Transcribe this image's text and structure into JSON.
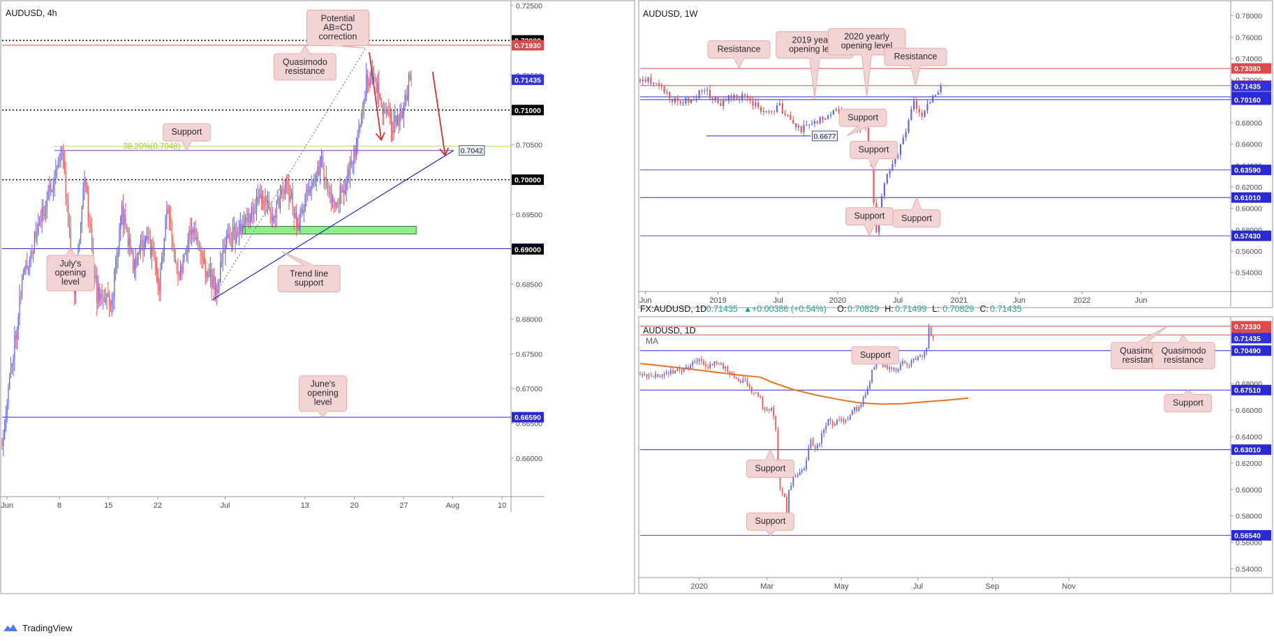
{
  "footer": {
    "brand": "TradingView",
    "logo_icon": "tradingview-logo-icon"
  },
  "colors": {
    "up": "#5b5ef0",
    "down": "#ef5350",
    "red_level": "#e04a4a",
    "blue_level": "#2929d6",
    "purple_level": "#7b3fb5",
    "callout_bg": "#f3d4d4",
    "callout_border": "#e9aaaa",
    "ma": "#e8741e",
    "zone": "#8ef08a",
    "fib": "#b7dc55"
  },
  "chart_data": [
    {
      "id": "h4",
      "type": "candlestick",
      "title": "AUDUSD, 4h",
      "ylim": [
        0.6545,
        0.7255
      ],
      "xlim": [
        0,
        102
      ],
      "ticks": [
        0.725,
        0.715,
        0.705,
        0.695,
        0.69,
        0.685,
        0.68,
        0.675,
        0.67,
        0.665,
        0.66
      ],
      "xticks": [
        {
          "x": 1,
          "label": "Jun"
        },
        {
          "x": 11.5,
          "label": "8"
        },
        {
          "x": 21.3,
          "label": "15"
        },
        {
          "x": 31.2,
          "label": "22"
        },
        {
          "x": 44.7,
          "label": "Jul"
        },
        {
          "x": 60.7,
          "label": "13"
        },
        {
          "x": 70.6,
          "label": "20"
        },
        {
          "x": 80.5,
          "label": "27"
        },
        {
          "x": 90.3,
          "label": "Aug"
        },
        {
          "x": 100.2,
          "label": "10"
        }
      ],
      "levels": [
        {
          "price": 0.72,
          "label": "0.72000",
          "style": "dotted",
          "color": "#000000",
          "badge": "#000000"
        },
        {
          "price": 0.7193,
          "label": "0.71930",
          "style": "solid",
          "color": "#e04a4a",
          "badge": "#e04a4a"
        },
        {
          "price": 0.71435,
          "label": "0.71435",
          "style": "none",
          "color": "#3030e0",
          "badge": "#3030e0"
        },
        {
          "price": 0.71,
          "label": "0.71000",
          "style": "dotted",
          "color": "#000000",
          "badge": "#000000"
        },
        {
          "price": 0.7,
          "label": "0.70000",
          "style": "dotted",
          "color": "#000000",
          "badge": "#000000"
        },
        {
          "price": 0.6901,
          "label": "0.69010",
          "style": "solid",
          "color": "#2929d6",
          "badge": "#2929d6"
        },
        {
          "price": 0.69,
          "label": "0.69000",
          "style": "none",
          "color": "#000000",
          "badge": "#000000"
        },
        {
          "price": 0.6659,
          "label": "0.66590",
          "style": "solid",
          "color": "#2929d6",
          "badge": "#2929d6"
        }
      ],
      "fib": {
        "price": 0.7048,
        "label": "38.20%(0.7048)"
      },
      "support_line": {
        "price": 0.7042,
        "x0": 10.5,
        "x1": 90.5,
        "tag": "0.7042"
      },
      "zone": {
        "x0": 48,
        "x1": 83,
        "y0": 0.6933,
        "y1": 0.6922
      },
      "trendline": {
        "x0": 42,
        "y0": 0.6827,
        "x1": 90.5,
        "y1": 0.7042
      },
      "ab_line": {
        "x0": 42,
        "y0": 0.6827,
        "x1": 72.8,
        "y1": 0.7188
      },
      "arrows": [
        {
          "x0": 73.6,
          "y0": 0.7183,
          "x1": 76,
          "y1": 0.7057
        },
        {
          "x0": 86.3,
          "y0": 0.7155,
          "x1": 88.8,
          "y1": 0.7035
        }
      ],
      "callouts": [
        {
          "text": "Potential\nAB=CD\ncorrection",
          "x": 67.3,
          "y": 0.7218,
          "tx": 72.8,
          "ty": 0.7189,
          "dir": "down"
        },
        {
          "text": "Quasimodo\nresistance",
          "x": 60.7,
          "y": 0.7162,
          "tx": 60.7,
          "ty": 0.7193,
          "dir": "up"
        },
        {
          "text": "Support",
          "x": 37,
          "y": 0.7068,
          "tx": 37,
          "ty": 0.7042,
          "dir": "down"
        },
        {
          "text": "July's\nopening\nlevel",
          "x": 13.7,
          "y": 0.6866,
          "tx": 13.7,
          "ty": 0.6901,
          "dir": "up"
        },
        {
          "text": "Trend line\nsupport",
          "x": 61.5,
          "y": 0.6858,
          "tx": 56,
          "ty": 0.6897,
          "dir": "up"
        },
        {
          "text": "June's\nopening\nlevel",
          "x": 64.3,
          "y": 0.6693,
          "tx": 64.3,
          "ty": 0.6659,
          "dir": "down"
        }
      ],
      "path": [
        [
          0,
          0.6625
        ],
        [
          4,
          0.6855
        ],
        [
          7,
          0.6925
        ],
        [
          12,
          0.7045
        ],
        [
          14.5,
          0.6845
        ],
        [
          16.5,
          0.7005
        ],
        [
          19,
          0.6835
        ],
        [
          22,
          0.6825
        ],
        [
          24,
          0.6955
        ],
        [
          26.5,
          0.6875
        ],
        [
          29,
          0.6925
        ],
        [
          31.5,
          0.6845
        ],
        [
          33,
          0.6955
        ],
        [
          35.5,
          0.6865
        ],
        [
          38,
          0.6935
        ],
        [
          40.5,
          0.6875
        ],
        [
          43,
          0.6843
        ],
        [
          45,
          0.6915
        ],
        [
          48,
          0.6925
        ],
        [
          52,
          0.6982
        ],
        [
          54,
          0.6945
        ],
        [
          57,
          0.6992
        ],
        [
          59.5,
          0.6935
        ],
        [
          61,
          0.6975
        ],
        [
          64,
          0.7025
        ],
        [
          66,
          0.6965
        ],
        [
          68.5,
          0.6985
        ],
        [
          71.5,
          0.7065
        ],
        [
          73,
          0.7145
        ],
        [
          74.5,
          0.7152
        ],
        [
          75.8,
          0.7112
        ],
        [
          78,
          0.7078
        ],
        [
          79.5,
          0.7082
        ],
        [
          80.8,
          0.7118
        ],
        [
          82,
          0.7143
        ]
      ],
      "vol": 0.0026,
      "seed": 11
    },
    {
      "id": "w1",
      "type": "candlestick",
      "title": "AUDUSD, 1W",
      "ylim": [
        0.5222,
        0.7928
      ],
      "xlim": [
        0,
        110
      ],
      "ticks": [
        0.78,
        0.76,
        0.74,
        0.72,
        0.68,
        0.66,
        0.64,
        0.62,
        0.6,
        0.58,
        0.56,
        0.54
      ],
      "xticks": [
        {
          "x": 1,
          "label": "Jun"
        },
        {
          "x": 14.5,
          "label": "2019"
        },
        {
          "x": 25.7,
          "label": "Jul"
        },
        {
          "x": 36.8,
          "label": "2020"
        },
        {
          "x": 48,
          "label": "Jul"
        },
        {
          "x": 59.4,
          "label": "2021"
        },
        {
          "x": 70.6,
          "label": "Jun"
        },
        {
          "x": 82.3,
          "label": "2022"
        },
        {
          "x": 93.3,
          "label": "Jun"
        }
      ],
      "levels": [
        {
          "price": 0.7308,
          "label": "0.73080",
          "style": "solid",
          "color": "#e04a4a",
          "badge": "#e04a4a"
        },
        {
          "price": 0.7147,
          "label": "0.71470",
          "style": "solid",
          "color": "#e04a4a",
          "badge": "#e04a4a"
        },
        {
          "price": 0.71435,
          "label": "0.71435",
          "style": "none",
          "color": "#3030e0",
          "badge": "#3030e0"
        },
        {
          "price": 0.7042,
          "label": "0.70420",
          "style": "solid",
          "color": "#2929d6",
          "badge": "#2929d6"
        },
        {
          "price": 0.7016,
          "label": "0.70160",
          "style": "solid",
          "color": "#2929d6",
          "badge": "#2929d6"
        },
        {
          "price": 0.6359,
          "label": "0.63590",
          "style": "solid",
          "color": "#7b3fb5",
          "badge": "#2929d6"
        },
        {
          "price": 0.6101,
          "label": "0.61010",
          "style": "solid",
          "color": "#2929d6",
          "badge": "#2929d6"
        },
        {
          "price": 0.5743,
          "label": "0.57430",
          "style": "solid",
          "color": "#7b3fb5",
          "badge": "#2929d6"
        }
      ],
      "short_line": {
        "price": 0.6677,
        "x0": 12.3,
        "x1": 31.8,
        "tag": "0.6677"
      },
      "callouts": [
        {
          "text": "Resistance",
          "x": 18.4,
          "y": 0.7485,
          "tx": 18.4,
          "ty": 0.731,
          "dir": "down"
        },
        {
          "text": "2019 yearly\nopening level",
          "x": 32.5,
          "y": 0.7528,
          "tx": 32.5,
          "ty": 0.7022,
          "dir": "down"
        },
        {
          "text": "2020 yearly\nopening level",
          "x": 42.2,
          "y": 0.7558,
          "tx": 42.2,
          "ty": 0.7042,
          "dir": "down"
        },
        {
          "text": "Resistance",
          "x": 51.3,
          "y": 0.7415,
          "tx": 51.3,
          "ty": 0.7147,
          "dir": "down"
        },
        {
          "text": "Support",
          "x": 41.5,
          "y": 0.6847,
          "tx": 38.5,
          "ty": 0.6677,
          "dir": "down"
        },
        {
          "text": "Support",
          "x": 43.5,
          "y": 0.6545,
          "tx": 43.5,
          "ty": 0.6359,
          "dir": "down"
        },
        {
          "text": "Support",
          "x": 42.7,
          "y": 0.5925,
          "tx": 42.7,
          "ty": 0.5743,
          "dir": "down"
        },
        {
          "text": "Support",
          "x": 51.5,
          "y": 0.5905,
          "tx": 51.5,
          "ty": 0.6101,
          "dir": "up"
        }
      ],
      "path": [
        [
          0,
          0.7205
        ],
        [
          3,
          0.7185
        ],
        [
          6,
          0.7005
        ],
        [
          9,
          0.7005
        ],
        [
          12,
          0.7105
        ],
        [
          15,
          0.6955
        ],
        [
          17,
          0.7055
        ],
        [
          20,
          0.7035
        ],
        [
          23,
          0.6885
        ],
        [
          26,
          0.6955
        ],
        [
          28,
          0.6805
        ],
        [
          30,
          0.6735
        ],
        [
          33,
          0.6815
        ],
        [
          36,
          0.6925
        ],
        [
          37.5,
          0.6905
        ],
        [
          40,
          0.6755
        ],
        [
          42,
          0.6755
        ],
        [
          43,
          0.6405
        ],
        [
          44,
          0.5755
        ],
        [
          45.5,
          0.6255
        ],
        [
          47.5,
          0.6455
        ],
        [
          49,
          0.6655
        ],
        [
          51,
          0.6985
        ],
        [
          52.5,
          0.6885
        ],
        [
          54,
          0.6985
        ],
        [
          56,
          0.7145
        ]
      ],
      "vol": 0.0065,
      "seed": 23
    },
    {
      "id": "d1",
      "type": "candlestick",
      "title": "AUDUSD, 1D",
      "ma_label": "MA",
      "ylim": [
        0.5335,
        0.7295
      ],
      "xlim": [
        0,
        270
      ],
      "ticks": [
        0.68,
        0.66,
        0.64,
        0.62,
        0.6,
        0.58,
        0.56,
        0.54
      ],
      "xticks": [
        {
          "x": 27,
          "label": "2020"
        },
        {
          "x": 58,
          "label": "Mar"
        },
        {
          "x": 92,
          "label": "May"
        },
        {
          "x": 127,
          "label": "Jul"
        },
        {
          "x": 161,
          "label": "Sep"
        },
        {
          "x": 196,
          "label": "Nov"
        }
      ],
      "levels": [
        {
          "price": 0.7233,
          "label": "0.72330",
          "style": "solid",
          "color": "#e04a4a",
          "badge": "#e04a4a"
        },
        {
          "price": 0.7168,
          "label": "0.71680",
          "style": "solid",
          "color": "#e04a4a",
          "badge": "#e04a4a"
        },
        {
          "price": 0.71435,
          "label": "0.71435",
          "style": "none",
          "color": "#3030e0",
          "badge": "#3030e0"
        },
        {
          "price": 0.7049,
          "label": "0.70490",
          "style": "solid",
          "color": "#2929d6",
          "badge": "#2929d6"
        },
        {
          "price": 0.6751,
          "label": "0.67510",
          "style": "solid",
          "color": "#2929d6",
          "badge": "#2929d6"
        },
        {
          "price": 0.6301,
          "label": "0.63010",
          "style": "solid",
          "color": "#2929d6",
          "badge": "#2929d6"
        },
        {
          "price": 0.5654,
          "label": "0.56540",
          "style": "solid",
          "color": "#7b3fb5",
          "badge": "#2929d6"
        }
      ],
      "ma": [
        [
          0,
          0.6952
        ],
        [
          15,
          0.6925
        ],
        [
          30,
          0.6895
        ],
        [
          45,
          0.6865
        ],
        [
          55,
          0.6848
        ],
        [
          60,
          0.6812
        ],
        [
          70,
          0.6755
        ],
        [
          80,
          0.6715
        ],
        [
          90,
          0.6682
        ],
        [
          100,
          0.6655
        ],
        [
          110,
          0.6645
        ],
        [
          120,
          0.6648
        ],
        [
          130,
          0.6662
        ],
        [
          140,
          0.6675
        ],
        [
          150,
          0.669
        ]
      ],
      "callouts": [
        {
          "text": "Support",
          "x": 107.5,
          "y": 0.7013,
          "tx": 107.5,
          "ty": 0.7049,
          "dir": "up"
        },
        {
          "text": "Quasimodo\nresistance",
          "x": 229.5,
          "y": 0.7011,
          "tx": 241,
          "ty": 0.7233,
          "dir": "up"
        },
        {
          "text": "Quasimodo\nresistance",
          "x": 248.5,
          "y": 0.7011,
          "tx": 248,
          "ty": 0.7168,
          "dir": "up"
        },
        {
          "text": "Support",
          "x": 250.5,
          "y": 0.6652,
          "tx": 250.5,
          "ty": 0.6751,
          "dir": "up"
        },
        {
          "text": "Support",
          "x": 59.5,
          "y": 0.6157,
          "tx": 59.5,
          "ty": 0.6301,
          "dir": "up"
        },
        {
          "text": "Support",
          "x": 59.5,
          "y": 0.5758,
          "tx": 59.5,
          "ty": 0.5654,
          "dir": "down"
        }
      ],
      "path": [
        [
          0,
          0.6875
        ],
        [
          5,
          0.6855
        ],
        [
          10,
          0.6845
        ],
        [
          16,
          0.6905
        ],
        [
          22,
          0.6915
        ],
        [
          27,
          0.6995
        ],
        [
          30,
          0.6935
        ],
        [
          35,
          0.6955
        ],
        [
          40,
          0.6905
        ],
        [
          45,
          0.6835
        ],
        [
          48,
          0.6805
        ],
        [
          52,
          0.6725
        ],
        [
          55,
          0.6685
        ],
        [
          57,
          0.6585
        ],
        [
          60,
          0.6625
        ],
        [
          62,
          0.6455
        ],
        [
          64,
          0.5985
        ],
        [
          66,
          0.5925
        ],
        [
          67,
          0.5835
        ],
        [
          68,
          0.5985
        ],
        [
          70,
          0.6105
        ],
        [
          72,
          0.6095
        ],
        [
          75,
          0.6175
        ],
        [
          78,
          0.6375
        ],
        [
          80,
          0.6295
        ],
        [
          83,
          0.6405
        ],
        [
          86,
          0.6525
        ],
        [
          88,
          0.6495
        ],
        [
          92,
          0.6535
        ],
        [
          95,
          0.6515
        ],
        [
          98,
          0.6605
        ],
        [
          100,
          0.6615
        ],
        [
          104,
          0.6745
        ],
        [
          106,
          0.6905
        ],
        [
          109,
          0.7005
        ],
        [
          111,
          0.6925
        ],
        [
          114,
          0.6935
        ],
        [
          117,
          0.6885
        ],
        [
          120,
          0.6955
        ],
        [
          123,
          0.6945
        ],
        [
          126,
          0.6995
        ],
        [
          129,
          0.7005
        ],
        [
          131,
          0.7085
        ],
        [
          132,
          0.7215
        ],
        [
          133,
          0.7145
        ],
        [
          134,
          0.7143
        ]
      ],
      "vol": 0.0042,
      "seed": 47
    }
  ],
  "daily_header": {
    "symbol": "FX:AUDUSD, 1D",
    "close": "0.71435",
    "change": "+0.00386 (+0.54%)",
    "arrow": "▲",
    "o_label": "O:",
    "o_val": "0.70829",
    "h_label": "H:",
    "h_val": "0.71499",
    "l_label": "L:",
    "l_val": "0.70829",
    "c_label": "C:",
    "c_val": "0.71435"
  }
}
